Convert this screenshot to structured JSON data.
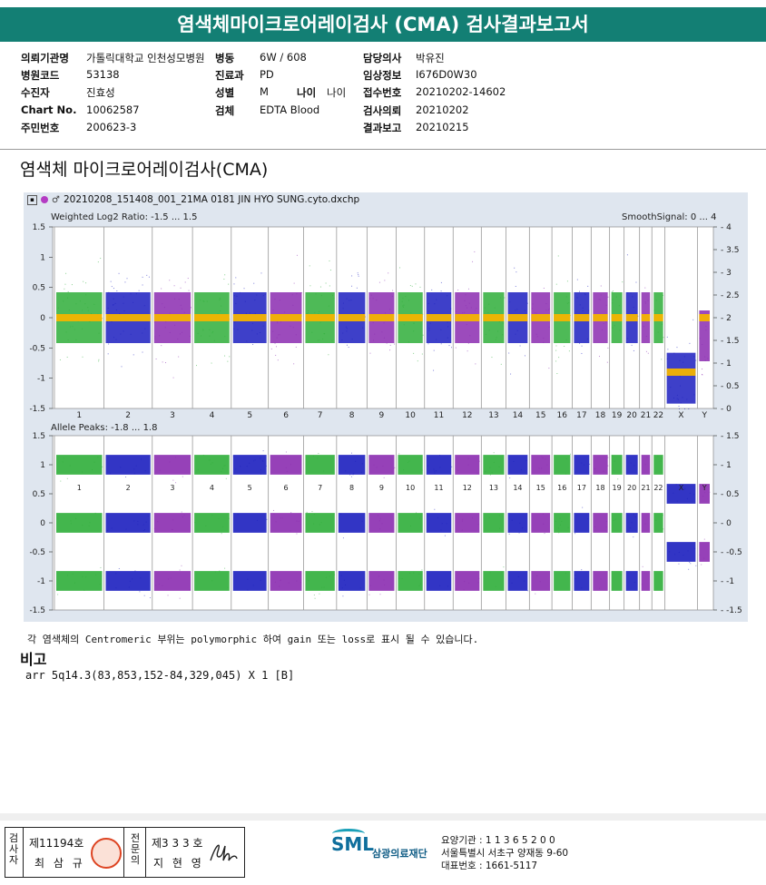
{
  "report": {
    "title": "염색체마이크로어레이검사 (CMA) 검사결과보고서",
    "section_title": "염색체 마이크로어레이검사(CMA)"
  },
  "patient_info": {
    "col1": [
      {
        "label": "의뢰기관명",
        "value": "가톨릭대학교 인천성모병원"
      },
      {
        "label": "병원코드",
        "value": "53138"
      },
      {
        "label": "수진자",
        "value": "진효성"
      },
      {
        "label": "Chart No.",
        "value": "10062587"
      },
      {
        "label": "주민번호",
        "value": "200623-3"
      }
    ],
    "col2": [
      {
        "label": "병동",
        "value": "6W / 608"
      },
      {
        "label": "진료과",
        "value": "PD"
      },
      {
        "label": "성별",
        "value": "M"
      },
      {
        "label": "검체",
        "value": "EDTA Blood"
      }
    ],
    "age": {
      "label": "나이",
      "value": "나이"
    },
    "col3": [
      {
        "label": "담당의사",
        "value": "박유진"
      },
      {
        "label": "임상정보",
        "value": "I676D0W30"
      },
      {
        "label": "접수번호",
        "value": "20210202-14602"
      },
      {
        "label": "검사의뢰",
        "value": "20210202"
      },
      {
        "label": "결과보고",
        "value": "20210215"
      }
    ]
  },
  "plot": {
    "filename": "20210208_151408_001_21MA 0181 JIN HYO SUNG.cyto.dxchp",
    "top_label": "Weighted Log2 Ratio: -1.5 ... 1.5",
    "top_right_label": "SmoothSignal: 0 ... 4",
    "bottom_label": "Allele Peaks: -1.8 ... 1.8",
    "chromosomes": [
      "1",
      "2",
      "3",
      "4",
      "5",
      "6",
      "7",
      "8",
      "9",
      "10",
      "11",
      "12",
      "13",
      "14",
      "15",
      "16",
      "17",
      "18",
      "19",
      "20",
      "21",
      "22",
      "X",
      "Y"
    ],
    "chromosome_widths": [
      248,
      242,
      198,
      190,
      181,
      171,
      159,
      145,
      138,
      134,
      135,
      133,
      114,
      107,
      102,
      90,
      83,
      80,
      59,
      64,
      47,
      51,
      156,
      57
    ],
    "left_ticks_top": [
      "1.5",
      "1",
      "0.5",
      "0",
      "-0.5",
      "-1",
      "-1.5"
    ],
    "right_ticks_top": [
      "4",
      "3.5",
      "3",
      "2.5",
      "2",
      "1.5",
      "1",
      "0.5",
      "0"
    ],
    "left_ticks_bottom": [
      "1.5",
      "1",
      "0.5",
      "0",
      "-0.5",
      "-1",
      "-1.5"
    ],
    "right_ticks_bottom": [
      "1.5",
      "1",
      "0.5",
      "0",
      "-0.5",
      "-1",
      "-1.5"
    ],
    "colors": {
      "green": "#2fae3a",
      "blue": "#1c1fbf",
      "purple": "#8b2cb0",
      "orange": "#f4b400",
      "grid": "#9a9a9a",
      "bg": "#ffffff"
    }
  },
  "note": "각 염색체의 Centromeric 부위는 polymorphic 하여 gain 또는 loss로 표시 될 수 있습니다.",
  "remark": {
    "title": "비고",
    "body": "arr 5q14.3(83,853,152-84,329,045) X 1 [B]"
  },
  "footer": {
    "v1": "검사자",
    "license1": "제11194호",
    "name1": "최 삼 규",
    "v2": "전문의",
    "license2": "제3 3 3 호",
    "name2": "지 현 영",
    "logo": "SML",
    "org": "삼광의료재단",
    "contact1": "요양기관 : 1 1 3 6 5 2 0 0",
    "contact2": "서울특별시 서초구 양재동 9-60",
    "contact3": "대표번호 : 1661-5117"
  }
}
